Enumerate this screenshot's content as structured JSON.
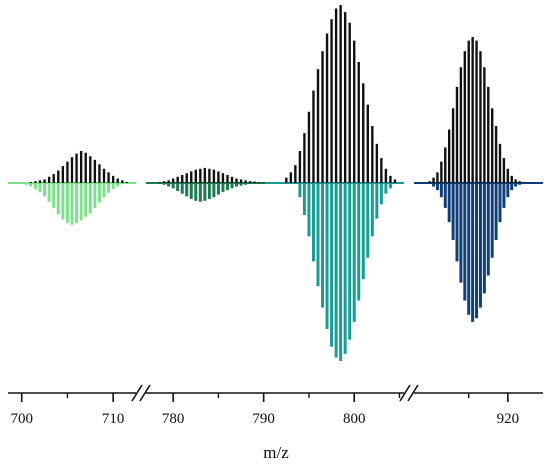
{
  "chart_data": {
    "type": "bar",
    "title": "",
    "xlabel": "m/z",
    "ylabel": "",
    "axis_break": true,
    "tick_labels": [
      "700",
      "710",
      "780",
      "790",
      "800",
      "920"
    ],
    "ticks": [
      {
        "value": 700,
        "label": "700"
      },
      {
        "value": 710,
        "label": "710"
      },
      {
        "value": 780,
        "label": "780"
      },
      {
        "value": 790,
        "label": "790"
      },
      {
        "value": 800,
        "label": "800"
      },
      {
        "value": 920,
        "label": "920"
      }
    ],
    "segments": [
      {
        "range": [
          698.5,
          712.5
        ]
      },
      {
        "range": [
          777.0,
          805.5
        ]
      },
      {
        "range": [
          908.0,
          924.5
        ]
      }
    ],
    "series": [
      {
        "direction": "up",
        "color": "#111111",
        "x": [
          701.0,
          701.5,
          702.0,
          702.5,
          703.0,
          703.5,
          704.0,
          704.5,
          705.0,
          705.5,
          706.0,
          706.5,
          707.0,
          707.5,
          708.0,
          708.5,
          709.0,
          709.5,
          710.0,
          710.5,
          711.0,
          711.5
        ],
        "y": [
          0.5,
          1.0,
          1.5,
          2.0,
          3.5,
          5.0,
          7.0,
          9.5,
          12.0,
          14.5,
          16.5,
          18.0,
          17.0,
          15.0,
          13.0,
          10.5,
          8.0,
          6.0,
          4.0,
          2.5,
          1.5,
          0.5
        ]
      },
      {
        "direction": "down",
        "color": "#7ee08a",
        "x": [
          700.0,
          700.5,
          701.0,
          701.5,
          702.0,
          702.5,
          703.0,
          703.5,
          704.0,
          704.5,
          705.0,
          705.5,
          706.0,
          706.5,
          707.0,
          707.5,
          708.0,
          708.5,
          709.0,
          709.5,
          710.0,
          710.5,
          711.0
        ],
        "y": [
          0.5,
          1.0,
          2.0,
          3.5,
          5.0,
          7.5,
          10.5,
          14.0,
          17.5,
          20.5,
          22.5,
          23.5,
          22.5,
          21.0,
          19.0,
          17.0,
          14.0,
          11.0,
          8.0,
          5.5,
          3.5,
          2.0,
          0.5
        ]
      },
      {
        "direction": "up",
        "color": "#111111",
        "x": [
          778.5,
          779.0,
          779.5,
          780.0,
          780.5,
          781.0,
          781.5,
          782.0,
          782.5,
          783.0,
          783.5,
          784.0,
          784.5,
          785.0,
          785.5,
          786.0,
          786.5,
          787.0,
          787.5,
          788.0,
          788.5,
          789.0,
          789.5,
          790.0
        ],
        "y": [
          0.5,
          1.0,
          1.5,
          2.5,
          3.5,
          4.5,
          5.5,
          6.5,
          7.5,
          8.0,
          8.5,
          8.0,
          7.5,
          6.5,
          5.5,
          4.5,
          3.5,
          2.5,
          2.0,
          1.5,
          1.0,
          0.8,
          0.5,
          0.3
        ]
      },
      {
        "direction": "down",
        "color": "#1b7a4e",
        "x": [
          778.5,
          779.0,
          779.5,
          780.0,
          780.5,
          781.0,
          781.5,
          782.0,
          782.5,
          783.0,
          783.5,
          784.0,
          784.5,
          785.0,
          785.5,
          786.0,
          786.5,
          787.0,
          787.5,
          788.0,
          788.5,
          789.0
        ],
        "y": [
          0.5,
          1.0,
          2.0,
          3.0,
          4.5,
          6.0,
          7.5,
          9.0,
          10.0,
          10.5,
          10.0,
          9.0,
          8.0,
          6.5,
          5.0,
          4.0,
          3.0,
          2.0,
          1.5,
          1.0,
          0.5,
          0.3
        ]
      },
      {
        "direction": "up",
        "color": "#111111",
        "x": [
          792.5,
          793.0,
          793.5,
          794.0,
          794.5,
          795.0,
          795.5,
          796.0,
          796.5,
          797.0,
          797.5,
          798.0,
          798.5,
          799.0,
          799.5,
          800.0,
          800.5,
          801.0,
          801.5,
          802.0,
          802.5,
          803.0,
          803.5,
          804.0,
          804.5
        ],
        "y": [
          3.0,
          6.0,
          10.0,
          18.0,
          28.0,
          40.0,
          52.0,
          64.0,
          74.0,
          84.0,
          92.0,
          98.0,
          100.0,
          96.0,
          90.0,
          80.0,
          68.0,
          56.0,
          44.0,
          32.0,
          22.0,
          14.0,
          8.0,
          4.0,
          2.0
        ]
      },
      {
        "direction": "down",
        "color": "#1a9c96",
        "x": [
          794.0,
          794.5,
          795.0,
          795.5,
          796.0,
          796.5,
          797.0,
          797.5,
          798.0,
          798.5,
          799.0,
          799.5,
          800.0,
          800.5,
          801.0,
          801.5,
          802.0,
          802.5,
          803.0,
          803.5,
          804.0
        ],
        "y": [
          8.0,
          18.0,
          30.0,
          44.0,
          58.0,
          70.0,
          82.0,
          92.0,
          98.0,
          100.0,
          96.0,
          88.0,
          78.0,
          66.0,
          54.0,
          42.0,
          30.0,
          20.0,
          12.0,
          6.0,
          3.0
        ]
      },
      {
        "direction": "up",
        "color": "#111111",
        "x": [
          910.0,
          910.5,
          911.0,
          911.5,
          912.0,
          912.5,
          913.0,
          913.5,
          914.0,
          914.5,
          915.0,
          915.5,
          916.0,
          916.5,
          917.0,
          917.5,
          918.0,
          918.5,
          919.0,
          919.5,
          920.0,
          920.5,
          921.0,
          921.5,
          922.0
        ],
        "y": [
          1.0,
          3.0,
          6.0,
          12.0,
          20.0,
          30.0,
          42.0,
          54.0,
          65.0,
          74.0,
          80.0,
          82.0,
          80.0,
          74.0,
          65.0,
          54.0,
          42.0,
          32.0,
          22.0,
          14.0,
          8.0,
          4.0,
          2.0,
          1.0,
          0.5
        ]
      },
      {
        "direction": "down",
        "color": "#0f3f78",
        "x": [
          910.5,
          911.0,
          911.5,
          912.0,
          912.5,
          913.0,
          913.5,
          914.0,
          914.5,
          915.0,
          915.5,
          916.0,
          916.5,
          917.0,
          917.5,
          918.0,
          918.5,
          919.0,
          919.5,
          920.0,
          920.5,
          921.0,
          921.5
        ],
        "y": [
          2.0,
          4.0,
          8.0,
          14.0,
          22.0,
          32.0,
          44.0,
          56.0,
          66.0,
          74.0,
          78.0,
          76.0,
          70.0,
          62.0,
          52.0,
          42.0,
          32.0,
          22.0,
          14.0,
          8.0,
          4.0,
          2.0,
          1.0
        ]
      }
    ]
  }
}
